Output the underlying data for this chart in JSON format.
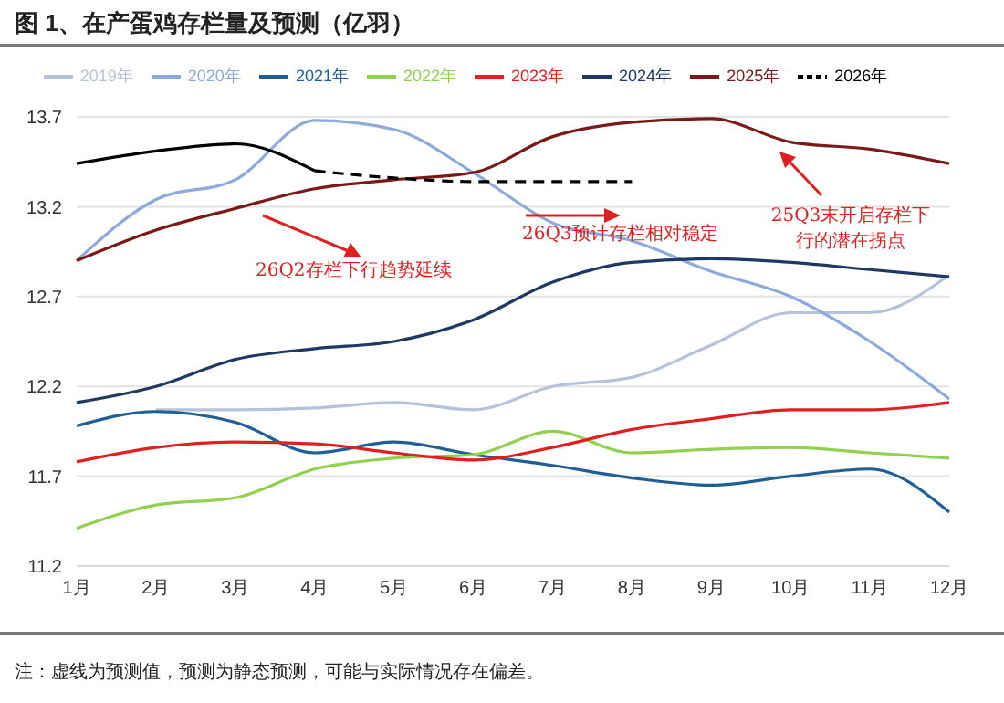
{
  "chart_data": {
    "type": "line",
    "title": "图 1、在产蛋鸡存栏量及预测（亿羽）",
    "categories": [
      "1月",
      "2月",
      "3月",
      "4月",
      "5月",
      "6月",
      "7月",
      "8月",
      "9月",
      "10月",
      "11月",
      "12月"
    ],
    "series": [
      {
        "name": "2019年",
        "color": "#b4c3d9",
        "values": [
          null,
          12.07,
          12.07,
          12.08,
          12.11,
          12.07,
          12.2,
          12.25,
          12.43,
          12.61,
          12.61,
          12.82
        ]
      },
      {
        "name": "2020年",
        "color": "#8eaadc",
        "values": [
          12.9,
          13.24,
          13.35,
          13.68,
          13.63,
          13.39,
          13.11,
          13.01,
          12.84,
          12.7,
          12.45,
          12.13
        ]
      },
      {
        "name": "2021年",
        "color": "#1f5f96",
        "values": [
          11.98,
          12.06,
          12.0,
          11.83,
          11.89,
          11.82,
          11.76,
          11.69,
          11.65,
          11.7,
          11.74,
          11.5
        ]
      },
      {
        "name": "2022年",
        "color": "#92d050",
        "values": [
          11.41,
          11.54,
          11.58,
          11.74,
          11.8,
          11.82,
          11.95,
          11.83,
          11.85,
          11.86,
          11.83,
          11.8
        ]
      },
      {
        "name": "2023年",
        "color": "#e02020",
        "values": [
          11.78,
          11.86,
          11.89,
          11.88,
          11.83,
          11.79,
          11.86,
          11.96,
          12.02,
          12.07,
          12.07,
          12.11
        ]
      },
      {
        "name": "2024年",
        "color": "#203864",
        "values": [
          12.11,
          12.2,
          12.35,
          12.41,
          12.45,
          12.57,
          12.78,
          12.89,
          12.91,
          12.89,
          12.85,
          12.81
        ]
      },
      {
        "name": "2025年",
        "color": "#7b1818",
        "values": [
          12.9,
          13.07,
          13.19,
          13.3,
          13.35,
          13.39,
          13.59,
          13.67,
          13.69,
          13.56,
          13.52,
          13.44
        ]
      },
      {
        "color": "#000000",
        "line_style": "solid",
        "values": [
          13.44,
          13.51,
          13.55,
          13.4,
          null,
          null,
          null,
          null,
          null,
          null,
          null,
          null
        ]
      },
      {
        "name": "2026年",
        "color": "#000000",
        "line_style": "dashed",
        "values": [
          null,
          null,
          null,
          13.4,
          13.36,
          13.34,
          13.34,
          13.34,
          null,
          null,
          null,
          null
        ]
      }
    ],
    "ylim": [
      11.2,
      13.7
    ],
    "yticks": [
      11.2,
      11.7,
      12.2,
      12.7,
      13.2,
      13.7
    ],
    "grid": "y",
    "legend": "top",
    "marker": "none",
    "annotations": [
      "26Q2存栏下行趋势延续",
      "26Q3预计存栏相对稳定",
      "25Q3末开启存栏下行的潜在拐点",
      "注：虚线为预测值，预测为静态预测，可能与实际情况存在偏差。"
    ]
  }
}
